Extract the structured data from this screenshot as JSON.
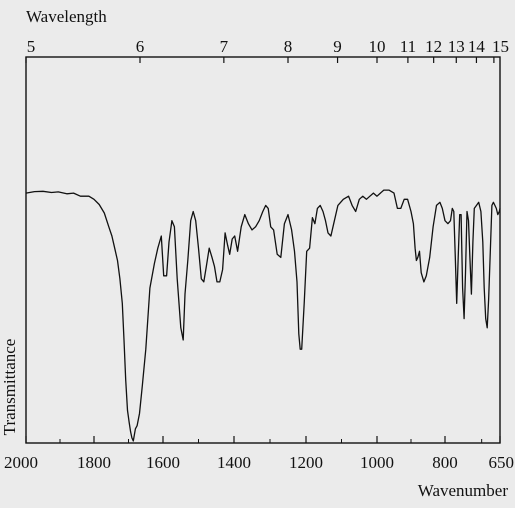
{
  "chart_data": {
    "type": "line",
    "top_axis_label": "Wavelength",
    "bottom_axis_label": "Wavenumber",
    "ylabel": "Transmittance",
    "xlim": [
      2000,
      650
    ],
    "ylim": [
      0,
      1
    ],
    "grid": false,
    "bottom_ticks": [
      {
        "value": 2000,
        "label": "2000"
      },
      {
        "value": 1800,
        "label": "1800"
      },
      {
        "value": 1600,
        "label": "1600"
      },
      {
        "value": 1400,
        "label": "1400"
      },
      {
        "value": 1200,
        "label": "1200"
      },
      {
        "value": 1000,
        "label": "1000"
      },
      {
        "value": 800,
        "label": "800"
      },
      {
        "value": 650,
        "label": "650"
      }
    ],
    "bottom_minor_ticks": [
      1900,
      1700,
      1500,
      1300,
      1100,
      900,
      700
    ],
    "top_ticks": [
      {
        "value": 5,
        "label": "5"
      },
      {
        "value": 6,
        "label": "6"
      },
      {
        "value": 7,
        "label": "7"
      },
      {
        "value": 8,
        "label": "8"
      },
      {
        "value": 9,
        "label": "9"
      },
      {
        "value": 10,
        "label": "10"
      },
      {
        "value": 11,
        "label": "11"
      },
      {
        "value": 12,
        "label": "12"
      },
      {
        "value": 13,
        "label": "13"
      },
      {
        "value": 14,
        "label": "14"
      },
      {
        "value": 15,
        "label": "15"
      }
    ],
    "series": [
      {
        "x": [
          2000,
          1975,
          1950,
          1925,
          1905,
          1880,
          1860,
          1840,
          1815,
          1800,
          1785,
          1770,
          1757,
          1748,
          1740,
          1732,
          1725,
          1718,
          1713,
          1708,
          1703,
          1698,
          1694,
          1690,
          1686,
          1680,
          1675,
          1668,
          1660,
          1650,
          1638,
          1625,
          1615,
          1605,
          1598,
          1590,
          1583,
          1575,
          1568,
          1560,
          1550,
          1543,
          1538,
          1530,
          1522,
          1515,
          1508,
          1500,
          1492,
          1485,
          1478,
          1470,
          1462,
          1455,
          1448,
          1440,
          1432,
          1425,
          1418,
          1412,
          1405,
          1398,
          1390,
          1380,
          1370,
          1360,
          1350,
          1340,
          1330,
          1320,
          1312,
          1305,
          1298,
          1290,
          1280,
          1270,
          1260,
          1250,
          1240,
          1232,
          1225,
          1220,
          1216,
          1212,
          1205,
          1198,
          1190,
          1182,
          1175,
          1168,
          1160,
          1152,
          1145,
          1138,
          1130,
          1122,
          1110,
          1095,
          1080,
          1070,
          1060,
          1050,
          1040,
          1030,
          1020,
          1010,
          1000,
          990,
          980,
          965,
          950,
          940,
          930,
          920,
          910,
          900,
          893,
          888,
          884,
          880,
          875,
          870,
          862,
          855,
          845,
          835,
          825,
          815,
          808,
          800,
          792,
          785,
          780,
          776,
          772,
          768,
          764,
          760,
          756,
          752,
          748,
          744,
          740,
          736,
          732,
          728,
          724,
          720,
          714,
          708,
          702,
          697,
          693,
          689,
          685,
          681,
          677,
          672,
          668,
          664,
          660,
          656,
          652,
          650
        ],
        "values": [
          0.81,
          0.815,
          0.816,
          0.812,
          0.814,
          0.808,
          0.81,
          0.8,
          0.8,
          0.79,
          0.773,
          0.745,
          0.7,
          0.67,
          0.63,
          0.59,
          0.53,
          0.45,
          0.33,
          0.2,
          0.1,
          0.06,
          0.03,
          0.01,
          0.0,
          0.04,
          0.05,
          0.09,
          0.18,
          0.3,
          0.5,
          0.58,
          0.63,
          0.67,
          0.54,
          0.54,
          0.65,
          0.72,
          0.7,
          0.53,
          0.37,
          0.33,
          0.48,
          0.59,
          0.72,
          0.75,
          0.72,
          0.63,
          0.53,
          0.52,
          0.57,
          0.63,
          0.6,
          0.57,
          0.52,
          0.52,
          0.56,
          0.68,
          0.64,
          0.61,
          0.66,
          0.67,
          0.62,
          0.7,
          0.74,
          0.71,
          0.69,
          0.7,
          0.72,
          0.75,
          0.77,
          0.76,
          0.7,
          0.69,
          0.61,
          0.6,
          0.71,
          0.74,
          0.69,
          0.62,
          0.52,
          0.35,
          0.3,
          0.3,
          0.45,
          0.62,
          0.63,
          0.73,
          0.71,
          0.76,
          0.77,
          0.75,
          0.72,
          0.68,
          0.67,
          0.71,
          0.77,
          0.79,
          0.8,
          0.77,
          0.75,
          0.79,
          0.8,
          0.79,
          0.8,
          0.81,
          0.8,
          0.81,
          0.82,
          0.82,
          0.81,
          0.76,
          0.76,
          0.79,
          0.79,
          0.75,
          0.71,
          0.63,
          0.59,
          0.6,
          0.62,
          0.55,
          0.52,
          0.54,
          0.6,
          0.7,
          0.77,
          0.78,
          0.76,
          0.72,
          0.71,
          0.72,
          0.76,
          0.75,
          0.6,
          0.45,
          0.6,
          0.74,
          0.74,
          0.5,
          0.4,
          0.55,
          0.75,
          0.72,
          0.6,
          0.48,
          0.65,
          0.76,
          0.77,
          0.78,
          0.75,
          0.65,
          0.5,
          0.4,
          0.37,
          0.46,
          0.6,
          0.77,
          0.78,
          0.77,
          0.76,
          0.74,
          0.75,
          0.76
        ]
      }
    ]
  }
}
